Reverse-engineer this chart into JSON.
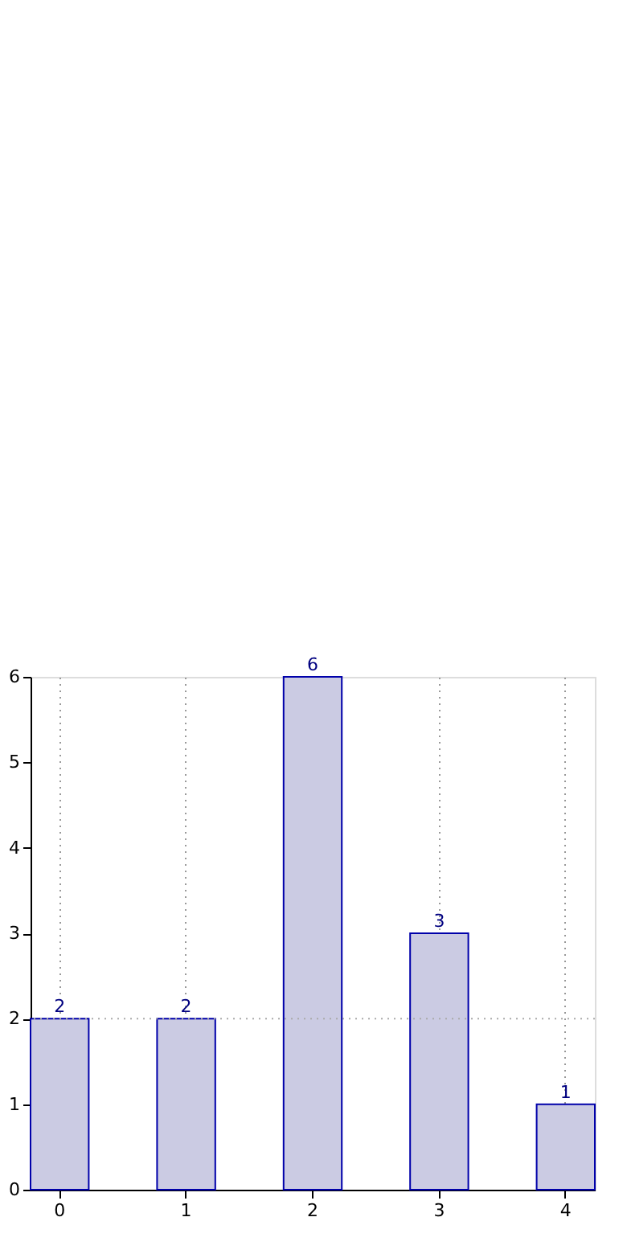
{
  "chart_data": {
    "type": "bar",
    "categories": [
      "0",
      "1",
      "2",
      "3",
      "4"
    ],
    "values": [
      2,
      2,
      6,
      3,
      1
    ],
    "color": "#cbcbe3",
    "ylim": [
      0,
      6
    ],
    "yticks": [
      0,
      1,
      2,
      3,
      4,
      5,
      6
    ],
    "grid": "x",
    "data_labels": true,
    "ref_lines": [
      {
        "axis": "y",
        "value": 2,
        "line_style": "dotted",
        "color": "#aaaaaa"
      }
    ]
  }
}
